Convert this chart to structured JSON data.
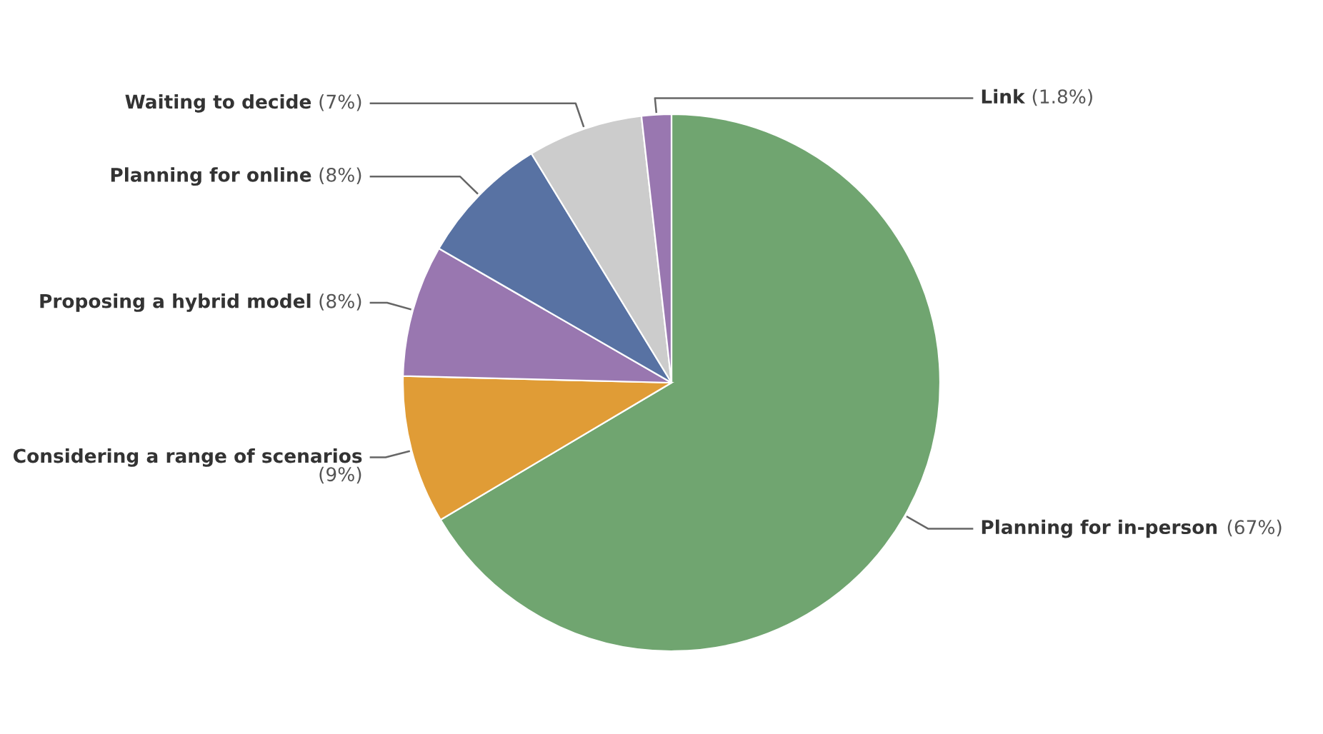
{
  "chart_data": {
    "type": "pie",
    "categories": [
      "Planning for in-person",
      "Considering a range of scenarios",
      "Proposing a hybrid model",
      "Planning for online",
      "Waiting to decide",
      "Link"
    ],
    "values": [
      67,
      9,
      8,
      8,
      7,
      1.8
    ],
    "value_labels": [
      "(67%)",
      "(9%)",
      "(8%)",
      "(8%)",
      "(7%)",
      "(1.8%)"
    ],
    "colors": [
      "#70a570",
      "#e09c36",
      "#9977b0",
      "#5872a3",
      "#cccccc",
      "#9977b0"
    ]
  }
}
